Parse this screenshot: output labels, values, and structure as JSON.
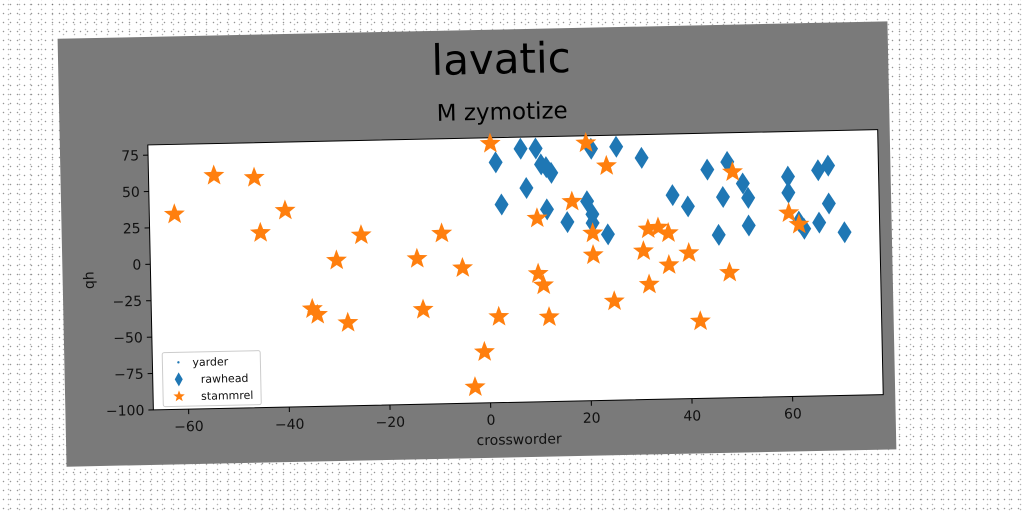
{
  "chart_data": {
    "type": "scatter",
    "title": "lavatic",
    "subtitle": "M zymotize",
    "xlabel": "crossworder",
    "ylabel": "qh",
    "xlim": [
      -67,
      78
    ],
    "ylim": [
      -100,
      82
    ],
    "xticks": [
      -60,
      -40,
      -20,
      0,
      20,
      40,
      60
    ],
    "yticks": [
      -100,
      -75,
      -50,
      -25,
      0,
      25,
      50,
      75
    ],
    "xtick_labels": [
      "−60",
      "−40",
      "−20",
      "0",
      "20",
      "40",
      "60"
    ],
    "ytick_labels": [
      "−100",
      "−75",
      "−50",
      "−25",
      "0",
      "25",
      "50",
      "75"
    ],
    "grid": false,
    "legend": {
      "position": "lower-left",
      "entries": [
        {
          "label": "yarder",
          "marker": "point"
        },
        {
          "label": "rawhead",
          "marker": "diamond"
        },
        {
          "label": "stammrel",
          "marker": "star"
        }
      ]
    },
    "series": [
      {
        "name": "yarder",
        "marker": "point",
        "color": "#1f77b4",
        "points": []
      },
      {
        "name": "rawhead",
        "marker": "diamond",
        "color": "#1f77b4",
        "points": [
          [
            2,
            65
          ],
          [
            3,
            36
          ],
          [
            7,
            74
          ],
          [
            8,
            47
          ],
          [
            10,
            74
          ],
          [
            11,
            63
          ],
          [
            12,
            32
          ],
          [
            12,
            61
          ],
          [
            13,
            57
          ],
          [
            16,
            23
          ],
          [
            20,
            37
          ],
          [
            21,
            73
          ],
          [
            21,
            28
          ],
          [
            21,
            22
          ],
          [
            24,
            14
          ],
          [
            26,
            74
          ],
          [
            31,
            66
          ],
          [
            37,
            40
          ],
          [
            40,
            32
          ],
          [
            44,
            57
          ],
          [
            46,
            12
          ],
          [
            47,
            38
          ],
          [
            48,
            62
          ],
          [
            51,
            47
          ],
          [
            52,
            18
          ],
          [
            52,
            37
          ],
          [
            60,
            51
          ],
          [
            60,
            40
          ],
          [
            62,
            20
          ],
          [
            63,
            15
          ],
          [
            66,
            19
          ],
          [
            66,
            55
          ],
          [
            68,
            58
          ],
          [
            68,
            32
          ],
          [
            71,
            12
          ]
        ]
      },
      {
        "name": "stammrel",
        "marker": "star",
        "color": "#ff7f0e",
        "points": [
          [
            -62,
            34
          ],
          [
            -54,
            60
          ],
          [
            -46,
            58
          ],
          [
            -45,
            20
          ],
          [
            -40,
            35
          ],
          [
            -35,
            -33
          ],
          [
            -34,
            -37
          ],
          [
            -30,
            0
          ],
          [
            -28,
            -43
          ],
          [
            -25,
            17
          ],
          [
            -14,
            0
          ],
          [
            -13,
            -35
          ],
          [
            -9,
            17
          ],
          [
            -5,
            -7
          ],
          [
            -3,
            -89
          ],
          [
            -1,
            -65
          ],
          [
            1,
            78
          ],
          [
            2,
            -41
          ],
          [
            10,
            -12
          ],
          [
            10,
            26
          ],
          [
            11,
            -20
          ],
          [
            12,
            -42
          ],
          [
            17,
            37
          ],
          [
            20,
            77
          ],
          [
            21,
            15
          ],
          [
            21,
            0
          ],
          [
            24,
            61
          ],
          [
            25,
            -32
          ],
          [
            31,
            2
          ],
          [
            32,
            -21
          ],
          [
            32,
            17
          ],
          [
            34,
            18
          ],
          [
            36,
            14
          ],
          [
            36,
            -8
          ],
          [
            40,
            0
          ],
          [
            42,
            -47
          ],
          [
            48,
            -14
          ],
          [
            49,
            55
          ],
          [
            60,
            26
          ],
          [
            62,
            18
          ]
        ]
      }
    ]
  }
}
